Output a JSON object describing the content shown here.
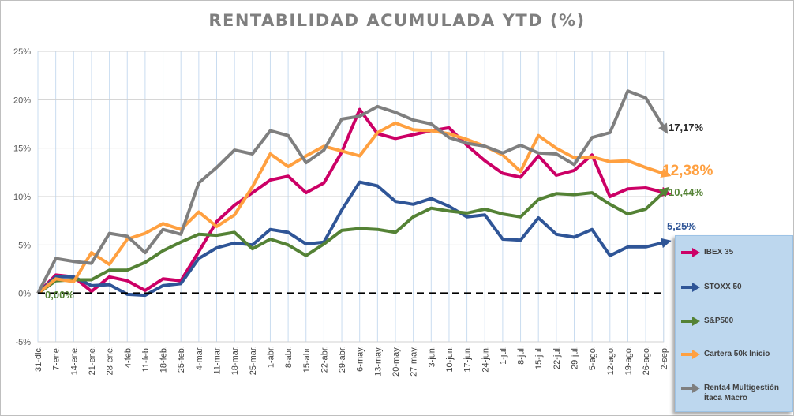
{
  "chart_data": {
    "type": "line",
    "title": "RENTABILIDAD ACUMULADA YTD (%)",
    "xlabel": "",
    "ylabel": "",
    "ylim": [
      -5,
      25
    ],
    "yticks": [
      -5,
      0,
      5,
      10,
      15,
      20,
      25
    ],
    "ytick_labels": [
      "-5%",
      "0%",
      "5%",
      "10%",
      "15%",
      "20%",
      "25%"
    ],
    "grid": true,
    "legend_position": "right",
    "categories": [
      "31-dic.",
      "7-ene.",
      "14-ene.",
      "21-ene.",
      "28-ene.",
      "4-feb.",
      "11-feb.",
      "18-feb.",
      "25-feb.",
      "4-mar.",
      "11-mar.",
      "18-mar.",
      "25-mar.",
      "1-abr.",
      "8-abr.",
      "15-abr.",
      "22-abr.",
      "29-abr.",
      "6-may.",
      "13-may.",
      "20-may.",
      "27-may.",
      "3-jun.",
      "10-jun.",
      "17-jun.",
      "24-jun.",
      "1-jul.",
      "8-jul.",
      "15-jul.",
      "22-jul.",
      "29-jul.",
      "5-ago.",
      "12-ago.",
      "19-ago.",
      "26-ago.",
      "2-sep."
    ],
    "series": [
      {
        "name": "IBEX 35",
        "color": "#cc0066",
        "values": [
          0,
          1.9,
          1.7,
          0.2,
          1.7,
          1.3,
          0.3,
          1.5,
          1.3,
          4.3,
          7.4,
          9.1,
          10.4,
          11.7,
          12.1,
          10.4,
          11.4,
          14.6,
          19.0,
          16.5,
          16.0,
          16.4,
          16.8,
          17.1,
          15.3,
          13.7,
          12.4,
          12.0,
          14.2,
          12.2,
          12.7,
          14.3,
          10.0,
          10.8,
          10.9,
          10.44
        ]
      },
      {
        "name": "STOXX 50",
        "color": "#2f5597",
        "values": [
          0,
          1.7,
          1.7,
          0.8,
          0.9,
          -0.1,
          -0.2,
          0.8,
          1.0,
          3.6,
          4.7,
          5.2,
          5.0,
          6.6,
          6.3,
          5.1,
          5.3,
          8.6,
          11.5,
          11.1,
          9.5,
          9.2,
          9.8,
          9.0,
          7.9,
          8.1,
          5.6,
          5.5,
          7.8,
          6.1,
          5.8,
          6.6,
          3.9,
          4.8,
          4.8,
          5.25
        ]
      },
      {
        "name": "S&P500",
        "color": "#548235",
        "values": [
          0,
          1.3,
          1.4,
          1.4,
          2.4,
          2.4,
          3.2,
          4.4,
          5.3,
          6.1,
          6.0,
          6.3,
          4.6,
          5.6,
          5.0,
          3.9,
          5.1,
          6.5,
          6.7,
          6.6,
          6.3,
          7.9,
          8.8,
          8.5,
          8.3,
          8.7,
          8.2,
          7.9,
          9.7,
          10.3,
          10.2,
          10.4,
          9.2,
          8.2,
          8.7,
          10.44
        ]
      },
      {
        "name": "Cartera 50k Inicio",
        "color": "#ffa040",
        "values": [
          0,
          1.5,
          1.2,
          4.2,
          3.0,
          5.6,
          6.2,
          7.2,
          6.6,
          8.4,
          6.9,
          8.1,
          11.0,
          14.4,
          13.1,
          14.2,
          15.2,
          14.7,
          14.2,
          16.6,
          17.6,
          16.9,
          16.8,
          16.5,
          15.9,
          15.2,
          14.3,
          12.6,
          16.3,
          15.0,
          14.0,
          14.1,
          13.6,
          13.7,
          13.0,
          12.38
        ]
      },
      {
        "name": "Renta4 Multigestión Ítaca Macro",
        "color": "#7f7f7f",
        "values": [
          0,
          3.6,
          3.3,
          3.1,
          6.2,
          5.9,
          4.2,
          6.6,
          6.1,
          11.4,
          13.0,
          14.8,
          14.4,
          16.8,
          16.3,
          13.5,
          14.8,
          18.0,
          18.3,
          19.3,
          18.7,
          17.9,
          17.5,
          16.1,
          15.5,
          15.2,
          14.5,
          15.3,
          14.5,
          14.4,
          13.3,
          16.1,
          16.6,
          20.9,
          20.2,
          17.17
        ]
      }
    ],
    "annotations": [
      {
        "text": "0,00%",
        "color": "#548235"
      },
      {
        "text": "17,17%",
        "color": "#262626"
      },
      {
        "text": "12,38%",
        "color": "#ffa040"
      },
      {
        "text": "10,44%",
        "color": "#548235"
      },
      {
        "text": "5,25%",
        "color": "#2f5597"
      }
    ],
    "zero_line_color": "#000000"
  }
}
